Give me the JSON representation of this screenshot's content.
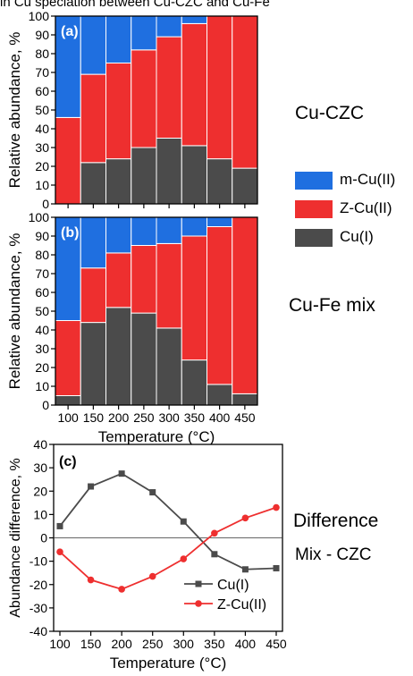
{
  "header_text": "in Cu speciation between Cu-CZC and Cu-Fe",
  "labels": {
    "cu_czc": "Cu-CZC",
    "cu_fe_mix": "Cu-Fe mix",
    "difference": "Difference",
    "mix_czc": "Mix - CZC"
  },
  "legend": [
    {
      "name": "m-Cu(II)",
      "color": "#1f6fe0"
    },
    {
      "name": "Z-Cu(II)",
      "color": "#ee2f2f"
    },
    {
      "name": "Cu(I)",
      "color": "#4b4b4b"
    }
  ],
  "chart_data": [
    {
      "type": "bar",
      "stacked": true,
      "panel": "(a)",
      "categories": [
        "100",
        "150",
        "200",
        "250",
        "300",
        "350",
        "400",
        "450"
      ],
      "series": [
        {
          "name": "Cu(I)",
          "values": [
            0,
            22,
            24,
            30,
            35,
            31,
            24,
            19
          ]
        },
        {
          "name": "Z-Cu(II)",
          "values": [
            46,
            47,
            51,
            52,
            54,
            65,
            76,
            81
          ]
        },
        {
          "name": "m-Cu(II)",
          "values": [
            54,
            31,
            25,
            18,
            11,
            4,
            0,
            0
          ]
        }
      ],
      "ylabel": "Relative abundance, %",
      "ylim": [
        0,
        100
      ],
      "yticks": [
        "0",
        "10",
        "20",
        "30",
        "40",
        "50",
        "60",
        "70",
        "80",
        "90",
        "100"
      ]
    },
    {
      "type": "bar",
      "stacked": true,
      "panel": "(b)",
      "categories": [
        "100",
        "150",
        "200",
        "250",
        "300",
        "350",
        "400",
        "450"
      ],
      "series": [
        {
          "name": "Cu(I)",
          "values": [
            5,
            44,
            52,
            49,
            41,
            24,
            11,
            6
          ]
        },
        {
          "name": "Z-Cu(II)",
          "values": [
            40,
            29,
            29,
            36,
            45,
            66,
            84,
            94
          ]
        },
        {
          "name": "m-Cu(II)",
          "values": [
            55,
            27,
            19,
            15,
            14,
            10,
            5,
            0
          ]
        }
      ],
      "xlabel": "Temperature (°C)",
      "ylabel": "Relative abundance, %",
      "ylim": [
        0,
        100
      ],
      "yticks": [
        "0",
        "10",
        "20",
        "30",
        "40",
        "50",
        "60",
        "70",
        "80",
        "90",
        "100"
      ]
    },
    {
      "type": "line",
      "panel": "(c)",
      "x": [
        100,
        150,
        200,
        250,
        300,
        350,
        400,
        450
      ],
      "series": [
        {
          "name": "Cu(I)",
          "color": "#4b4b4b",
          "marker": "square",
          "values": [
            5,
            22,
            27.5,
            19.5,
            7,
            -7,
            -13.5,
            -13
          ]
        },
        {
          "name": "Z-Cu(II)",
          "color": "#ee2f2f",
          "marker": "circle",
          "values": [
            -6,
            -18,
            -22,
            -16.5,
            -9,
            2,
            8.5,
            13
          ]
        }
      ],
      "xlabel": "Temperature (°C)",
      "ylabel": "Abundance difference, %",
      "ylim": [
        -40,
        40
      ],
      "yticks": [
        "-40",
        "-30",
        "-20",
        "-10",
        "0",
        "10",
        "20",
        "30",
        "40"
      ],
      "xticks": [
        "100",
        "150",
        "200",
        "250",
        "300",
        "350",
        "400",
        "450"
      ],
      "legend_position": "bottom-right"
    }
  ]
}
